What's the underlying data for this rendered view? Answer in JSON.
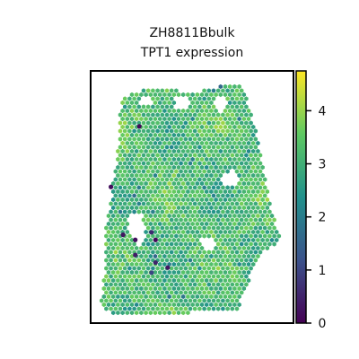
{
  "chart_data": {
    "type": "scatter",
    "title_lines": [
      "ZH8811Bbulk",
      "TPT1 expression"
    ],
    "xlabel": "",
    "ylabel": "",
    "colorbar": {
      "colormap": "viridis",
      "range": [
        0,
        4.75
      ],
      "ticks": [
        0,
        1,
        2,
        3,
        4
      ],
      "tick_labels": [
        "0",
        "1",
        "2",
        "3",
        "4"
      ]
    },
    "colormap_stops": [
      "#440154",
      "#3b528b",
      "#21918c",
      "#5ec962",
      "#fde725"
    ],
    "notes": "Spatial spot map; each hexagonal spot colored by TPT1 expression (mostly ~3.0–3.8, a few low-expression outliers near 0).",
    "low_expression_spots": [
      {
        "x": 0.24,
        "y": 0.78,
        "value": 0.1
      },
      {
        "x": 0.1,
        "y": 0.54,
        "value": 0.2
      },
      {
        "x": 0.16,
        "y": 0.35,
        "value": 0.3
      },
      {
        "x": 0.22,
        "y": 0.33,
        "value": 0.2
      },
      {
        "x": 0.32,
        "y": 0.33,
        "value": 0.1
      },
      {
        "x": 0.22,
        "y": 0.27,
        "value": 0.4
      },
      {
        "x": 0.3,
        "y": 0.36,
        "value": 0.6
      },
      {
        "x": 0.32,
        "y": 0.24,
        "value": 0.5
      },
      {
        "x": 0.38,
        "y": 0.22,
        "value": 0.3
      },
      {
        "x": 0.3,
        "y": 0.2,
        "value": 1.0
      }
    ]
  }
}
